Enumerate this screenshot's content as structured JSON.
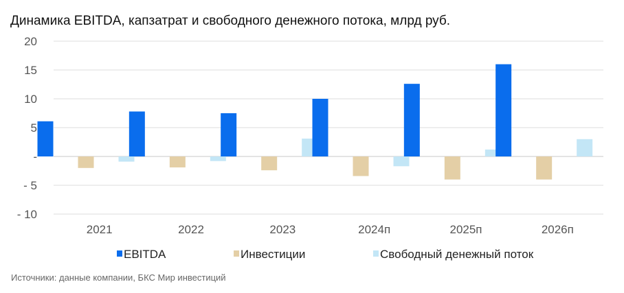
{
  "title": "Динамика EBITDA, капзатрат и свободного денежного потока, млрд руб.",
  "source": "Источники: данные компании, БКС Мир инвестиций",
  "chart_data": {
    "type": "bar",
    "title": "Динамика EBITDA, капзатрат и свободного денежного потока, млрд руб.",
    "xlabel": "",
    "ylabel": "",
    "ylim": [
      -10,
      20
    ],
    "y_ticks": [
      20,
      15,
      10,
      5,
      0,
      -5,
      -10
    ],
    "y_tick_labels": [
      "20",
      "15",
      "10",
      "5",
      "-",
      "- 5",
      "- 10"
    ],
    "grid": true,
    "legend_position": "bottom",
    "categories": [
      "2021",
      "2022",
      "2023",
      "2024п",
      "2025п",
      "2026п"
    ],
    "series": [
      {
        "name": "EBITDA",
        "color": "#0a6ded",
        "values": [
          6.1,
          7.8,
          7.5,
          10.0,
          12.6,
          16.0
        ]
      },
      {
        "name": "Инвестиции",
        "color": "#e4cfa6",
        "values": [
          -2.0,
          -1.9,
          -2.4,
          -3.4,
          -4.0,
          -4.0
        ]
      },
      {
        "name": "Свободный денежный поток",
        "color": "#c3e6f6",
        "values": [
          -0.9,
          -0.8,
          3.1,
          -1.7,
          1.2,
          3.0
        ]
      }
    ]
  }
}
